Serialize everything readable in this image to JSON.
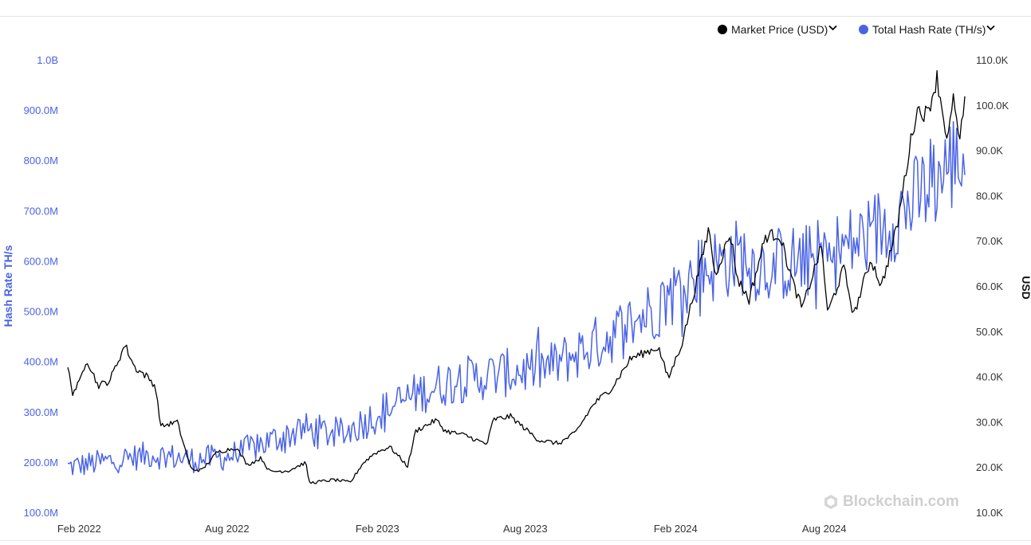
{
  "legend": {
    "items": [
      {
        "label": "Market Price (USD)",
        "color": "#000000"
      },
      {
        "label": "Total Hash Rate (TH/s)",
        "color": "#4a63e6"
      }
    ]
  },
  "watermark": "Blockchain.com",
  "chart_data": {
    "type": "line",
    "title": "",
    "xlabel": "",
    "ylabel": "Hash Rate TH/s",
    "ylabel_right": "USD",
    "x_ticks": [
      "Feb 2022",
      "Aug 2022",
      "Feb 2023",
      "Aug 2023",
      "Feb 2024",
      "Aug 2024"
    ],
    "y_ticks_left": [
      "100.0M",
      "200.0M",
      "300.0M",
      "400.0M",
      "500.0M",
      "600.0M",
      "700.0M",
      "800.0M",
      "900.0M",
      "1.0B"
    ],
    "y_ticks_right": [
      "10.0K",
      "20.0K",
      "30.0K",
      "40.0K",
      "50.0K",
      "60.0K",
      "70.0K",
      "80.0K",
      "90.0K",
      "100.0K",
      "110.0K"
    ],
    "ylim_left": [
      100000000,
      1000000000
    ],
    "ylim_right": [
      10000,
      110000
    ],
    "x_range": [
      "2022-01-18",
      "2025-01-21"
    ],
    "grid": false,
    "legend_position": "top-right",
    "series": [
      {
        "name": "Market Price (USD)",
        "axis": "right",
        "color": "#000000",
        "points": [
          [
            "2022-01-18",
            42000
          ],
          [
            "2022-01-24",
            36500
          ],
          [
            "2022-02-01",
            38500
          ],
          [
            "2022-02-10",
            44000
          ],
          [
            "2022-02-24",
            38000
          ],
          [
            "2022-03-10",
            39000
          ],
          [
            "2022-03-29",
            47000
          ],
          [
            "2022-04-10",
            42000
          ],
          [
            "2022-04-25",
            40000
          ],
          [
            "2022-05-05",
            38000
          ],
          [
            "2022-05-12",
            29000
          ],
          [
            "2022-06-01",
            30000
          ],
          [
            "2022-06-13",
            22500
          ],
          [
            "2022-06-18",
            19500
          ],
          [
            "2022-07-01",
            19300
          ],
          [
            "2022-07-20",
            23300
          ],
          [
            "2022-08-12",
            24300
          ],
          [
            "2022-08-26",
            20500
          ],
          [
            "2022-09-12",
            22000
          ],
          [
            "2022-09-22",
            19000
          ],
          [
            "2022-10-15",
            19200
          ],
          [
            "2022-11-05",
            21000
          ],
          [
            "2022-11-10",
            16500
          ],
          [
            "2022-12-10",
            17200
          ],
          [
            "2022-12-30",
            16600
          ],
          [
            "2023-01-14",
            20800
          ],
          [
            "2023-01-28",
            23000
          ],
          [
            "2023-02-16",
            24500
          ],
          [
            "2023-03-10",
            20200
          ],
          [
            "2023-03-20",
            28000
          ],
          [
            "2023-04-14",
            30400
          ],
          [
            "2023-04-25",
            28000
          ],
          [
            "2023-05-20",
            27000
          ],
          [
            "2023-06-15",
            25000
          ],
          [
            "2023-06-23",
            30500
          ],
          [
            "2023-07-14",
            31200
          ],
          [
            "2023-08-17",
            26000
          ],
          [
            "2023-09-11",
            25200
          ],
          [
            "2023-10-01",
            27500
          ],
          [
            "2023-10-24",
            34000
          ],
          [
            "2023-11-15",
            37500
          ],
          [
            "2023-12-08",
            44000
          ],
          [
            "2024-01-11",
            46500
          ],
          [
            "2024-01-23",
            39500
          ],
          [
            "2024-02-09",
            47500
          ],
          [
            "2024-02-28",
            62000
          ],
          [
            "2024-03-13",
            73000
          ],
          [
            "2024-03-20",
            62500
          ],
          [
            "2024-04-08",
            71500
          ],
          [
            "2024-04-17",
            61500
          ],
          [
            "2024-05-01",
            57000
          ],
          [
            "2024-05-21",
            71000
          ],
          [
            "2024-06-07",
            71500
          ],
          [
            "2024-06-24",
            60500
          ],
          [
            "2024-07-05",
            55000
          ],
          [
            "2024-07-29",
            69000
          ],
          [
            "2024-08-05",
            54000
          ],
          [
            "2024-08-25",
            64000
          ],
          [
            "2024-09-06",
            53500
          ],
          [
            "2024-09-27",
            66000
          ],
          [
            "2024-10-10",
            60000
          ],
          [
            "2024-10-29",
            73000
          ],
          [
            "2024-11-13",
            90000
          ],
          [
            "2024-11-22",
            99000
          ],
          [
            "2024-12-05",
            98000
          ],
          [
            "2024-12-17",
            106000
          ],
          [
            "2024-12-30",
            92000
          ],
          [
            "2025-01-07",
            102000
          ],
          [
            "2025-01-13",
            91000
          ],
          [
            "2025-01-21",
            101500
          ]
        ]
      },
      {
        "name": "Total Hash Rate (TH/s)",
        "axis": "left",
        "color": "#4a63e6",
        "points": [
          [
            "2022-01-18",
            190000000
          ],
          [
            "2022-03-01",
            200000000
          ],
          [
            "2022-05-01",
            215000000
          ],
          [
            "2022-06-20",
            205000000
          ],
          [
            "2022-08-01",
            210000000
          ],
          [
            "2022-09-20",
            240000000
          ],
          [
            "2022-11-01",
            265000000
          ],
          [
            "2022-12-20",
            255000000
          ],
          [
            "2023-02-01",
            295000000
          ],
          [
            "2023-03-20",
            335000000
          ],
          [
            "2023-05-01",
            360000000
          ],
          [
            "2023-07-01",
            375000000
          ],
          [
            "2023-09-01",
            390000000
          ],
          [
            "2023-11-01",
            440000000
          ],
          [
            "2024-01-01",
            500000000
          ],
          [
            "2024-03-01",
            580000000
          ],
          [
            "2024-04-20",
            610000000
          ],
          [
            "2024-05-15",
            590000000
          ],
          [
            "2024-07-15",
            600000000
          ],
          [
            "2024-09-15",
            640000000
          ],
          [
            "2024-11-15",
            710000000
          ],
          [
            "2025-01-01",
            790000000
          ],
          [
            "2025-01-21",
            810000000
          ]
        ]
      }
    ]
  }
}
